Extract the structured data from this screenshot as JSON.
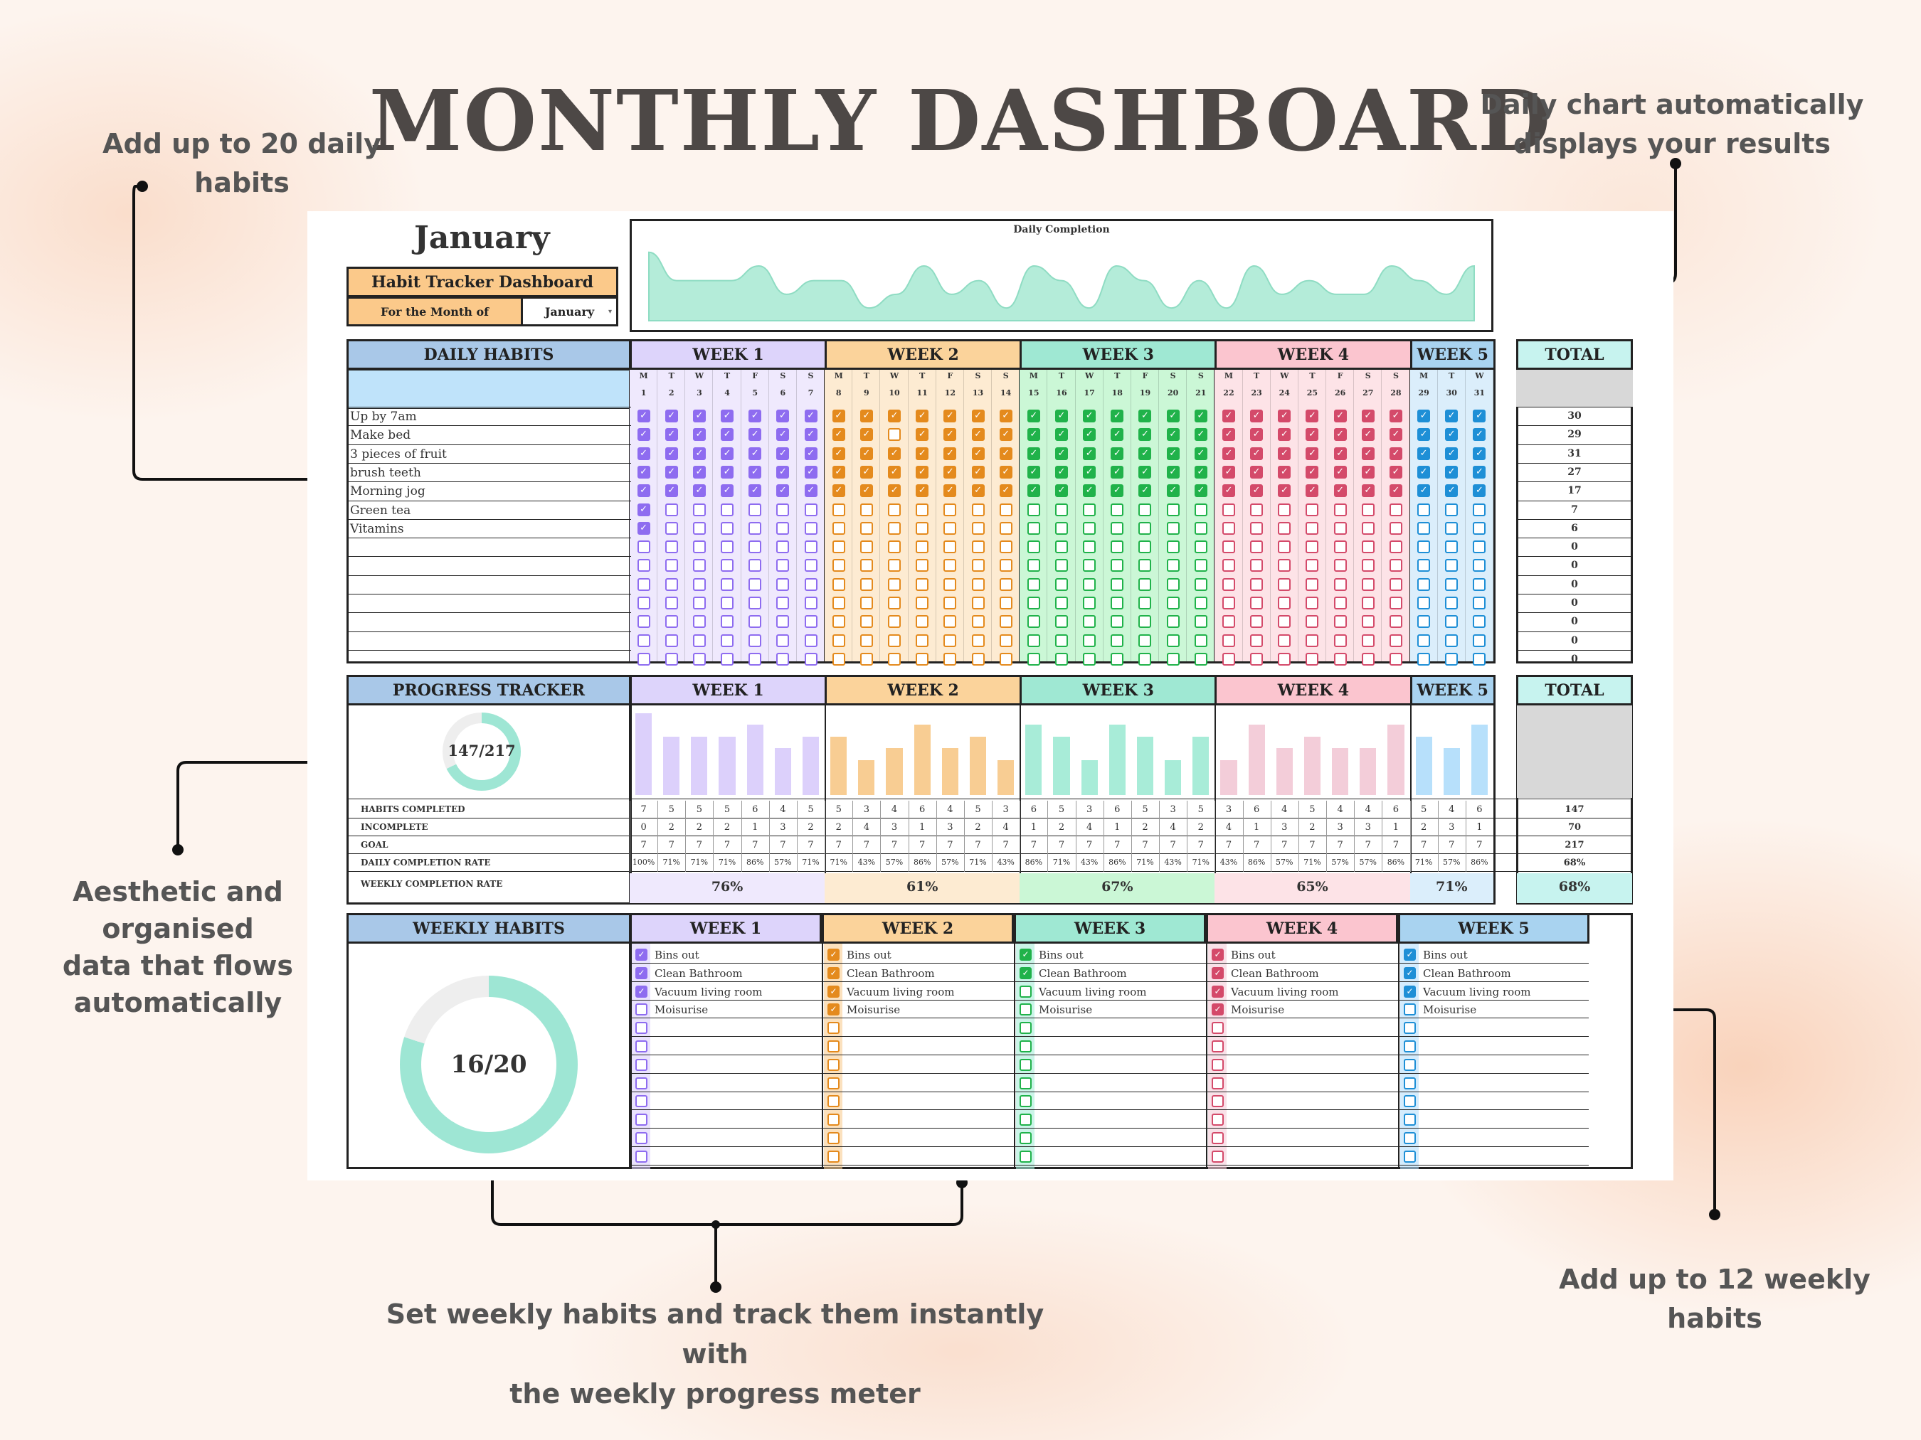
{
  "title": "MONTHLY DASHBOARD",
  "annotations": {
    "daily_habits": [
      "Add up to 20 daily",
      "habits"
    ],
    "daily_chart": [
      "Daily chart automatically",
      "displays your results"
    ],
    "aesthetic": [
      "Aesthetic and organised",
      "data that flows",
      "automatically"
    ],
    "weekly_meter": [
      "Set weekly habits and track them instantly with",
      "the weekly progress meter"
    ],
    "weekly_habits": "Add up to 12 weekly habits"
  },
  "sheet": {
    "month_title": "January",
    "dashboard_label": "Habit Tracker Dashboard",
    "for_month_label": "For the Month of",
    "month_select": "January",
    "chart_title": "Daily Completion",
    "daily_habits_header": "DAILY HABITS",
    "total_header": "TOTAL",
    "progress_header": "PROGRESS TRACKER",
    "weekly_habits_header": "WEEKLY HABITS",
    "progress_ring": "147/217",
    "weekly_ring": "16/20",
    "weeks": [
      "WEEK 1",
      "WEEK 2",
      "WEEK 3",
      "WEEK 4",
      "WEEK 5"
    ],
    "day_letters": [
      "M",
      "T",
      "W",
      "T",
      "F",
      "S",
      "S",
      "M",
      "T",
      "W",
      "T",
      "F",
      "S",
      "S",
      "M",
      "T",
      "W",
      "T",
      "F",
      "S",
      "S",
      "M",
      "T",
      "W",
      "T",
      "F",
      "S",
      "S",
      "M",
      "T",
      "W"
    ],
    "day_numbers": [
      "1",
      "2",
      "3",
      "4",
      "5",
      "6",
      "7",
      "8",
      "9",
      "10",
      "11",
      "12",
      "13",
      "14",
      "15",
      "16",
      "17",
      "18",
      "19",
      "20",
      "21",
      "22",
      "23",
      "24",
      "25",
      "26",
      "27",
      "28",
      "29",
      "30",
      "31"
    ],
    "habits": [
      "Up by 7am",
      "Make bed",
      "3 pieces of fruit",
      "brush teeth",
      "Morning jog",
      "Green tea",
      "Vitamins",
      "",
      "",
      "",
      "",
      "",
      "",
      ""
    ],
    "habit_totals": [
      "30",
      "29",
      "31",
      "27",
      "17",
      "7",
      "6",
      "0",
      "0",
      "0",
      "0",
      "0",
      "0",
      "0"
    ],
    "stat_labels": [
      "HABITS COMPLETED",
      "INCOMPLETE",
      "GOAL",
      "DAILY COMPLETION RATE",
      "WEEKLY COMPLETION RATE"
    ],
    "completed": [
      "7",
      "5",
      "5",
      "5",
      "6",
      "4",
      "5",
      "5",
      "3",
      "4",
      "6",
      "4",
      "5",
      "3",
      "6",
      "5",
      "3",
      "6",
      "5",
      "3",
      "5",
      "3",
      "6",
      "4",
      "5",
      "4",
      "4",
      "6",
      "5",
      "4",
      "6"
    ],
    "incomplete": [
      "0",
      "2",
      "2",
      "2",
      "1",
      "3",
      "2",
      "2",
      "4",
      "3",
      "1",
      "3",
      "2",
      "4",
      "1",
      "2",
      "4",
      "1",
      "2",
      "4",
      "2",
      "4",
      "1",
      "3",
      "2",
      "3",
      "3",
      "1",
      "2",
      "3",
      "1"
    ],
    "goal": [
      "7",
      "7",
      "7",
      "7",
      "7",
      "7",
      "7",
      "7",
      "7",
      "7",
      "7",
      "7",
      "7",
      "7",
      "7",
      "7",
      "7",
      "7",
      "7",
      "7",
      "7",
      "7",
      "7",
      "7",
      "7",
      "7",
      "7",
      "7",
      "7",
      "7",
      "7"
    ],
    "daily_rate": [
      "100%",
      "71%",
      "71%",
      "71%",
      "86%",
      "57%",
      "71%",
      "71%",
      "43%",
      "57%",
      "86%",
      "57%",
      "71%",
      "43%",
      "86%",
      "71%",
      "43%",
      "86%",
      "71%",
      "43%",
      "71%",
      "43%",
      "86%",
      "57%",
      "71%",
      "57%",
      "57%",
      "86%",
      "71%",
      "57%",
      "86%"
    ],
    "weekly_rate": [
      "76%",
      "61%",
      "67%",
      "65%",
      "71%"
    ],
    "totals": {
      "completed": "147",
      "incomplete": "70",
      "goal": "217",
      "daily_rate": "68%",
      "weekly_rate": "68%"
    },
    "weekly_habit_names": [
      "Bins out",
      "Clean Bathroom",
      "Vacuum living room",
      "Moisurise"
    ],
    "weekly_checked": [
      [
        true,
        true,
        true,
        false
      ],
      [
        true,
        true,
        true,
        true
      ],
      [
        true,
        true,
        false,
        false
      ],
      [
        true,
        true,
        true,
        true
      ],
      [
        true,
        true,
        true,
        false
      ]
    ],
    "week_colors": [
      {
        "head": "#ddd4fb",
        "fill": "#efe9fd",
        "box": "#8e6cf0",
        "light": "#dcd0fb"
      },
      {
        "head": "#fbd39b",
        "fill": "#fdebd2",
        "box": "#e48a1d",
        "light": "#f8cd93"
      },
      {
        "head": "#9fe8d3",
        "fill": "#cbf7d6",
        "box": "#20b24a",
        "light": "#a8ecd8"
      },
      {
        "head": "#fbc5cf",
        "fill": "#fde3e7",
        "box": "#d44a6a",
        "light": "#f3cdd9"
      },
      {
        "head": "#a9d3f0",
        "fill": "#dbeefb",
        "box": "#1e8fd6",
        "light": "#b7e0fb"
      }
    ],
    "grid": [
      "1111111111111111111111111111111",
      "1111111110111111111111111111111",
      "1111111111111111111111111111111",
      "1111111111111111111111111111111",
      "1111111111111111111111111111111",
      "1000000000000000000000000000000",
      "1000000000000000000000000000000",
      "0000000000000000000000000000000"
    ]
  },
  "chart_data": {
    "type": "area",
    "title": "Daily Completion",
    "x": [
      1,
      2,
      3,
      4,
      5,
      6,
      7,
      8,
      9,
      10,
      11,
      12,
      13,
      14,
      15,
      16,
      17,
      18,
      19,
      20,
      21,
      22,
      23,
      24,
      25,
      26,
      27,
      28,
      29,
      30,
      31
    ],
    "values": [
      100,
      71,
      71,
      71,
      86,
      57,
      71,
      71,
      43,
      57,
      86,
      57,
      71,
      43,
      86,
      71,
      43,
      86,
      71,
      43,
      71,
      43,
      86,
      57,
      71,
      57,
      57,
      86,
      71,
      57,
      86
    ],
    "color": "#b4ecd9"
  }
}
